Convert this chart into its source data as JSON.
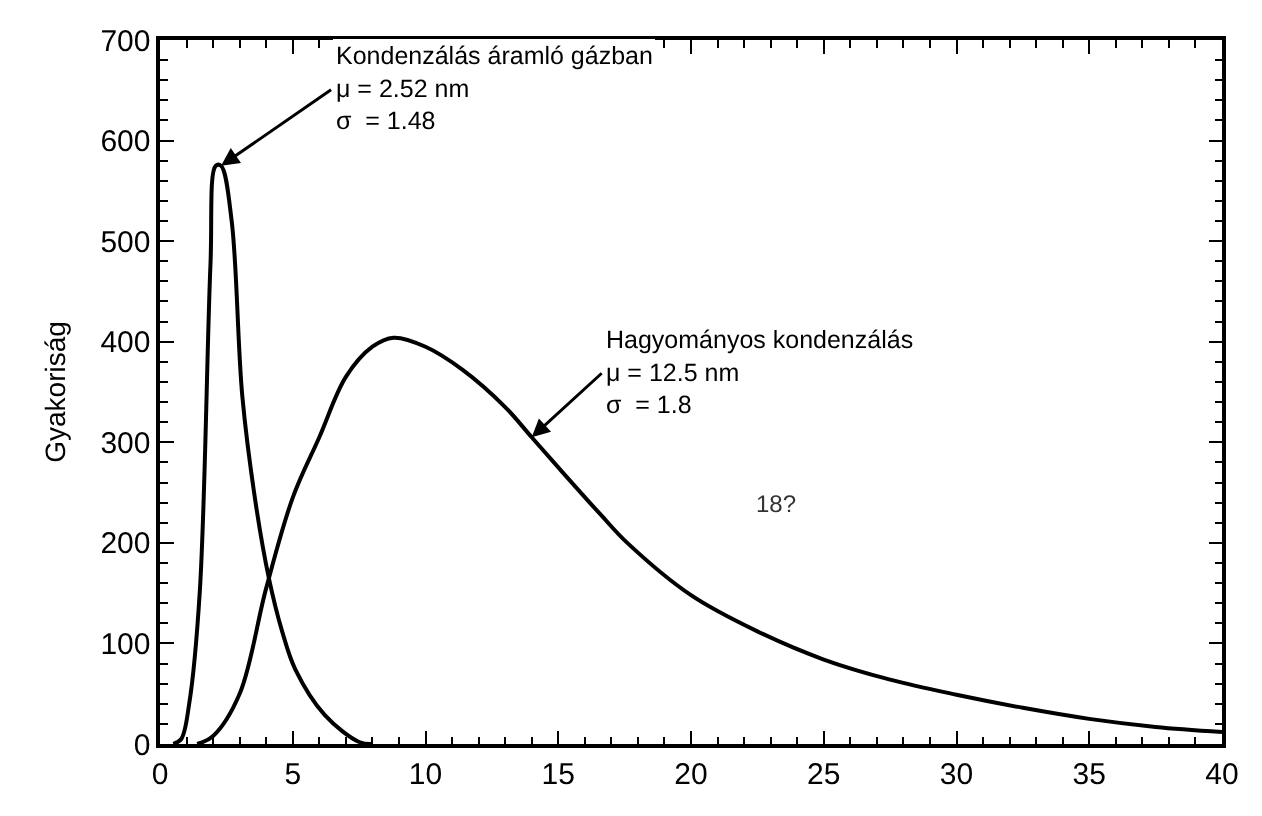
{
  "chart_data": {
    "type": "line",
    "ylabel": "Gyakoriság",
    "xlim": [
      0,
      40
    ],
    "xticks": [
      0,
      5,
      10,
      15,
      20,
      25,
      30,
      35,
      40
    ],
    "ylim": [
      0,
      700
    ],
    "yticks": [
      0,
      100,
      200,
      300,
      400,
      500,
      600,
      700
    ],
    "marker": "none",
    "line_style": "solid",
    "series": [
      {
        "color": "#000000",
        "x": [
          0.5,
          0.8,
          1.1,
          1.5,
          1.9,
          2.1,
          2.3,
          2.7,
          3.1,
          3.6,
          4.1,
          4.6,
          5.1,
          6.2,
          7.5,
          8
        ],
        "values": [
          0,
          5,
          40,
          152,
          476,
          575,
          575,
          520,
          346,
          240,
          165,
          112,
          74,
          29,
          2,
          0
        ]
      },
      {
        "color": "#000000",
        "x": [
          1.4,
          2,
          3,
          4,
          5,
          6,
          7,
          8,
          8.8,
          10,
          11.4,
          13,
          14,
          15,
          16.6,
          17.6,
          20,
          22.5,
          25,
          27.5,
          30,
          32.5,
          35,
          37.5,
          40
        ],
        "values": [
          0,
          8,
          50,
          155,
          245,
          305,
          365,
          395,
          404,
          395,
          372,
          335,
          305,
          275,
          228,
          200,
          148,
          112,
          84,
          64,
          49,
          36,
          25,
          17,
          12
        ]
      }
    ],
    "annotations": [
      {
        "text": "Kondenzálás áramló gázban\nμ = 2.52 nm\nσ  = 1.48",
        "x": 2.3,
        "y": 575
      },
      {
        "text": "Hagyományos kondenzálás\nμ = 12.5 nm\nσ  = 1.8",
        "x": 14,
        "y": 305
      },
      "18?"
    ]
  }
}
